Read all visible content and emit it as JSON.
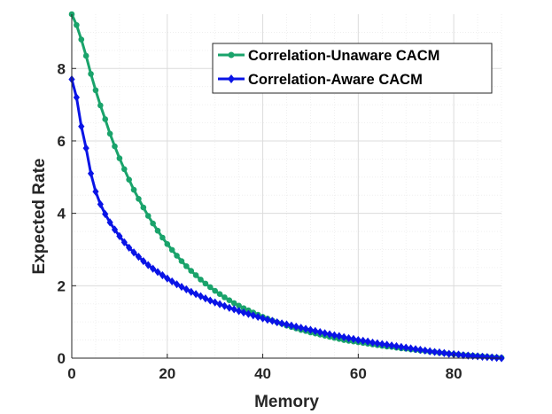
{
  "chart_data": {
    "type": "line",
    "title": "",
    "xlabel": "Memory",
    "ylabel": "Expected Rate",
    "xlim": [
      0,
      90
    ],
    "ylim": [
      0,
      9.5
    ],
    "xticks": [
      0,
      20,
      40,
      60,
      80
    ],
    "yticks": [
      0,
      2,
      4,
      6,
      8
    ],
    "grid": true,
    "legend_position": "top-right",
    "series": [
      {
        "name": "Correlation-Unaware CACM",
        "color": "#1aa36b",
        "marker": "circle",
        "x": [
          0,
          1,
          2,
          3,
          4,
          5,
          6,
          7,
          8,
          9,
          10,
          11,
          12,
          13,
          14,
          15,
          16,
          17,
          18,
          19,
          20,
          21,
          22,
          23,
          24,
          25,
          26,
          27,
          28,
          29,
          30,
          31,
          32,
          33,
          34,
          35,
          36,
          37,
          38,
          39,
          40,
          41,
          42,
          43,
          44,
          45,
          46,
          47,
          48,
          49,
          50,
          51,
          52,
          53,
          54,
          55,
          56,
          57,
          58,
          59,
          60,
          61,
          62,
          63,
          64,
          65,
          66,
          67,
          68,
          69,
          70,
          71,
          72,
          73,
          74,
          75,
          76,
          77,
          78,
          79,
          80,
          81,
          82,
          83,
          84,
          85,
          86,
          87,
          88,
          89,
          90
        ],
        "y": [
          9.5,
          9.2,
          8.8,
          8.35,
          7.85,
          7.4,
          6.98,
          6.6,
          6.2,
          5.85,
          5.52,
          5.22,
          4.93,
          4.65,
          4.4,
          4.16,
          3.93,
          3.72,
          3.52,
          3.33,
          3.15,
          2.99,
          2.83,
          2.68,
          2.54,
          2.41,
          2.29,
          2.17,
          2.06,
          1.96,
          1.86,
          1.77,
          1.68,
          1.6,
          1.52,
          1.45,
          1.38,
          1.32,
          1.26,
          1.2,
          1.14,
          1.09,
          1.04,
          0.99,
          0.95,
          0.9,
          0.86,
          0.82,
          0.78,
          0.75,
          0.71,
          0.68,
          0.65,
          0.62,
          0.59,
          0.56,
          0.53,
          0.5,
          0.48,
          0.46,
          0.44,
          0.42,
          0.4,
          0.38,
          0.36,
          0.34,
          0.32,
          0.31,
          0.29,
          0.27,
          0.26,
          0.24,
          0.23,
          0.21,
          0.2,
          0.18,
          0.17,
          0.15,
          0.14,
          0.12,
          0.11,
          0.1,
          0.09,
          0.08,
          0.07,
          0.06,
          0.05,
          0.04,
          0.03,
          0.02,
          0.01
        ]
      },
      {
        "name": "Correlation-Aware CACM",
        "color": "#0a14e6",
        "marker": "diamond",
        "x": [
          0,
          1,
          2,
          3,
          4,
          5,
          6,
          7,
          8,
          9,
          10,
          11,
          12,
          13,
          14,
          15,
          16,
          17,
          18,
          19,
          20,
          21,
          22,
          23,
          24,
          25,
          26,
          27,
          28,
          29,
          30,
          31,
          32,
          33,
          34,
          35,
          36,
          37,
          38,
          39,
          40,
          41,
          42,
          43,
          44,
          45,
          46,
          47,
          48,
          49,
          50,
          51,
          52,
          53,
          54,
          55,
          56,
          57,
          58,
          59,
          60,
          61,
          62,
          63,
          64,
          65,
          66,
          67,
          68,
          69,
          70,
          71,
          72,
          73,
          74,
          75,
          76,
          77,
          78,
          79,
          80,
          81,
          82,
          83,
          84,
          85,
          86,
          87,
          88,
          89,
          90
        ],
        "y": [
          7.7,
          7.2,
          6.4,
          5.8,
          5.1,
          4.6,
          4.25,
          3.98,
          3.75,
          3.55,
          3.37,
          3.2,
          3.05,
          2.92,
          2.8,
          2.68,
          2.57,
          2.47,
          2.38,
          2.29,
          2.2,
          2.12,
          2.04,
          1.97,
          1.9,
          1.83,
          1.77,
          1.71,
          1.65,
          1.59,
          1.54,
          1.49,
          1.44,
          1.39,
          1.35,
          1.3,
          1.26,
          1.22,
          1.18,
          1.14,
          1.1,
          1.06,
          1.03,
          0.99,
          0.96,
          0.93,
          0.9,
          0.87,
          0.84,
          0.81,
          0.78,
          0.75,
          0.72,
          0.69,
          0.66,
          0.63,
          0.61,
          0.58,
          0.55,
          0.53,
          0.5,
          0.48,
          0.46,
          0.43,
          0.41,
          0.39,
          0.37,
          0.35,
          0.33,
          0.31,
          0.29,
          0.27,
          0.25,
          0.23,
          0.21,
          0.19,
          0.17,
          0.16,
          0.14,
          0.12,
          0.11,
          0.1,
          0.08,
          0.07,
          0.06,
          0.05,
          0.04,
          0.03,
          0.02,
          0.01,
          0.0
        ]
      }
    ]
  }
}
